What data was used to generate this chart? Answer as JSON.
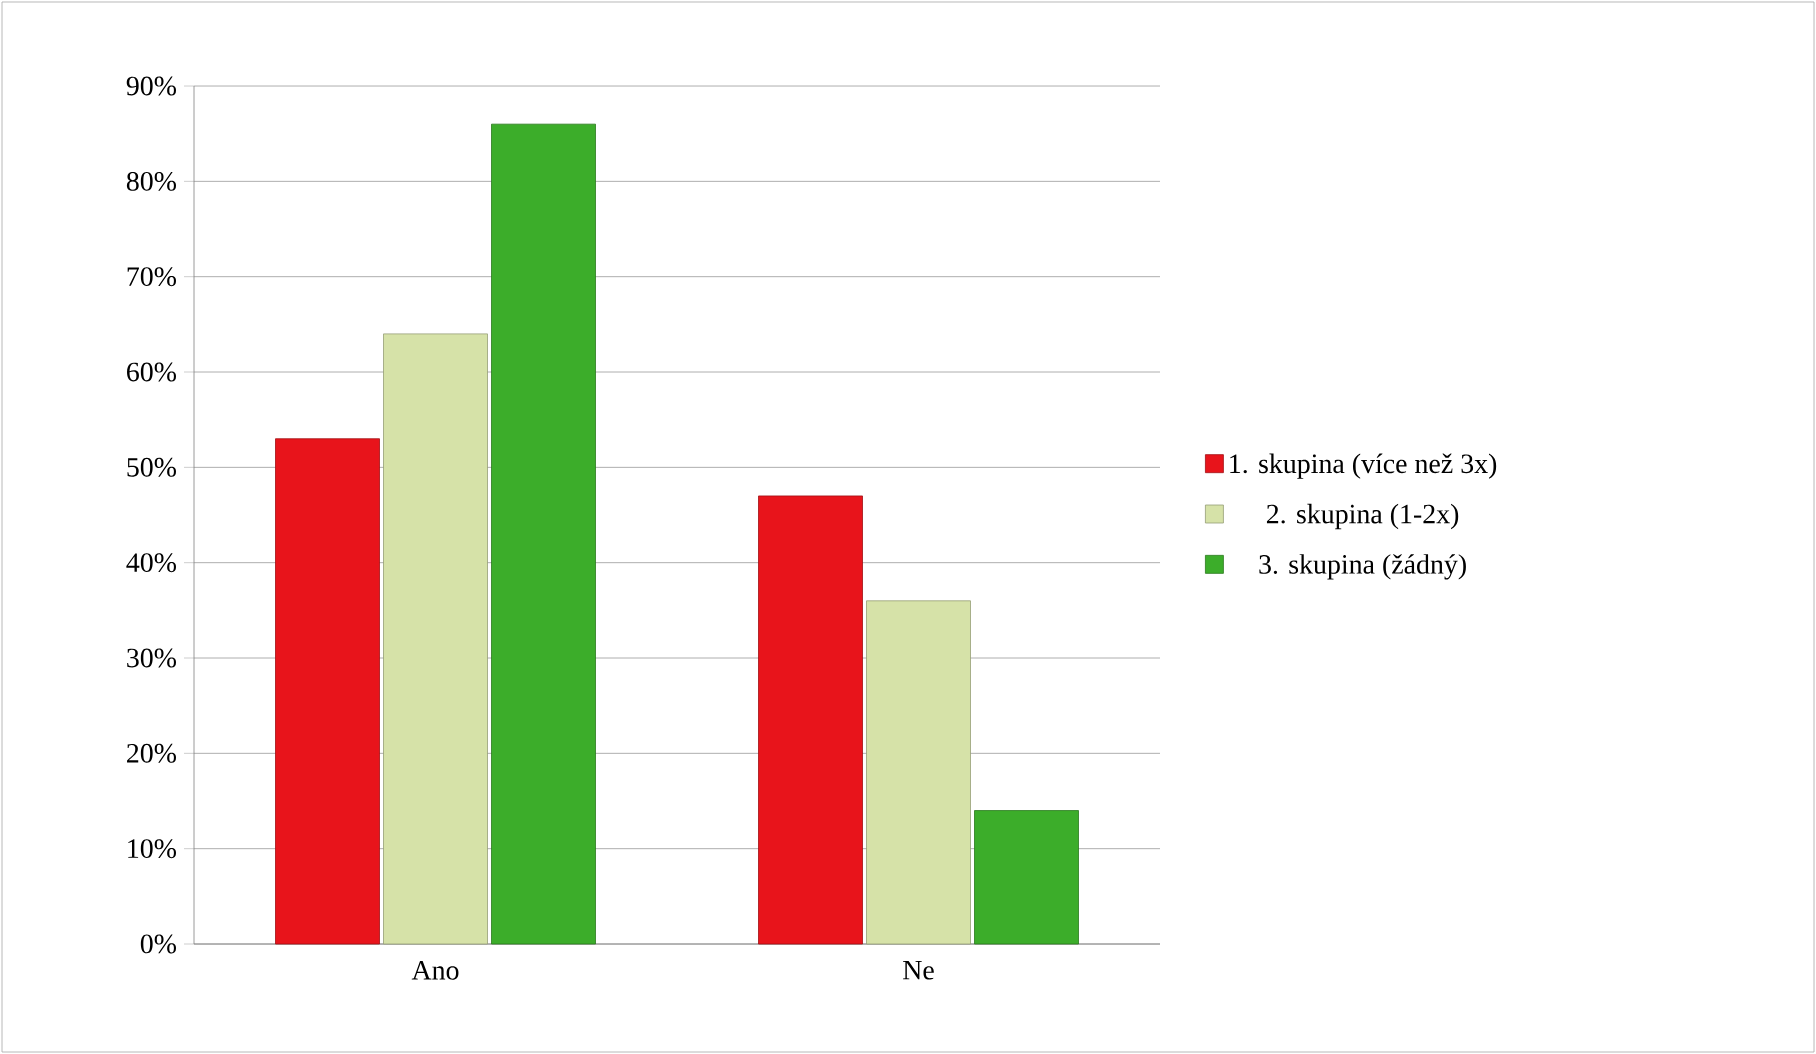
{
  "chart_data": {
    "type": "bar",
    "categories": [
      "Ano",
      "Ne"
    ],
    "series": [
      {
        "name": "1. skupina (více než 3x)",
        "color": "#e8141b",
        "values": [
          53,
          47
        ]
      },
      {
        "name": "2. skupina (1-2x)",
        "color": "#d6e2a8",
        "values": [
          64,
          36
        ]
      },
      {
        "name": "3. skupina (žádný)",
        "color": "#3cad2a",
        "values": [
          86,
          14
        ]
      }
    ],
    "ylim": [
      0,
      90
    ],
    "yticks": [
      {
        "value": 0,
        "label": "0%"
      },
      {
        "value": 10,
        "label": "10%"
      },
      {
        "value": 20,
        "label": "20%"
      },
      {
        "value": 30,
        "label": "30%"
      },
      {
        "value": 40,
        "label": "40%"
      },
      {
        "value": 50,
        "label": "50%"
      },
      {
        "value": 60,
        "label": "60%"
      },
      {
        "value": 70,
        "label": "70%"
      },
      {
        "value": 80,
        "label": "80%"
      },
      {
        "value": 90,
        "label": "90%"
      }
    ],
    "grid": "y",
    "legend": "right"
  }
}
